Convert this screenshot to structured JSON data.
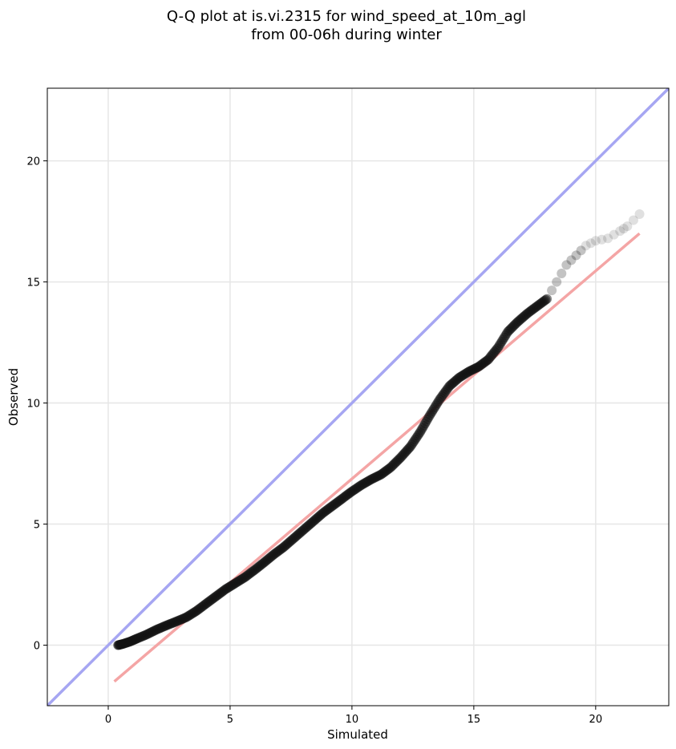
{
  "chart_data": {
    "type": "scatter",
    "title_lines": [
      "Q-Q plot at is.vi.2315 for wind_speed_at_10m_agl",
      "from 00-06h during winter"
    ],
    "xlabel": "Simulated",
    "ylabel": "Observed",
    "xlim": [
      -2.5,
      23
    ],
    "ylim": [
      -2.5,
      23
    ],
    "xticks": [
      0,
      5,
      10,
      15,
      20
    ],
    "yticks": [
      0,
      5,
      10,
      15,
      20
    ],
    "grid": true,
    "colors": {
      "points": "#111111",
      "identity_line": "#a6a6f2",
      "fit_line": "#f4a5a5",
      "grid": "#e6e6e6"
    },
    "identity_line": {
      "x": [
        -2.5,
        23
      ],
      "y": [
        -2.5,
        23
      ]
    },
    "fit_line": {
      "x": [
        0.25,
        21.8
      ],
      "y": [
        -1.5,
        17.0
      ]
    },
    "quantiles": [
      [
        0.4,
        0.0
      ],
      [
        0.6,
        0.05
      ],
      [
        0.9,
        0.15
      ],
      [
        1.2,
        0.28
      ],
      [
        1.6,
        0.45
      ],
      [
        2.0,
        0.65
      ],
      [
        2.4,
        0.82
      ],
      [
        2.8,
        0.98
      ],
      [
        3.2,
        1.15
      ],
      [
        3.6,
        1.4
      ],
      [
        4.0,
        1.7
      ],
      [
        4.4,
        2.0
      ],
      [
        4.8,
        2.3
      ],
      [
        5.2,
        2.55
      ],
      [
        5.6,
        2.8
      ],
      [
        6.0,
        3.1
      ],
      [
        6.4,
        3.42
      ],
      [
        6.8,
        3.75
      ],
      [
        7.2,
        4.05
      ],
      [
        7.6,
        4.4
      ],
      [
        8.0,
        4.75
      ],
      [
        8.4,
        5.1
      ],
      [
        8.8,
        5.45
      ],
      [
        9.2,
        5.75
      ],
      [
        9.6,
        6.05
      ],
      [
        10.0,
        6.35
      ],
      [
        10.4,
        6.62
      ],
      [
        10.8,
        6.85
      ],
      [
        11.2,
        7.05
      ],
      [
        11.6,
        7.35
      ],
      [
        12.0,
        7.75
      ],
      [
        12.4,
        8.2
      ],
      [
        12.8,
        8.8
      ],
      [
        13.2,
        9.5
      ],
      [
        13.6,
        10.15
      ],
      [
        14.0,
        10.7
      ],
      [
        14.4,
        11.05
      ],
      [
        14.8,
        11.3
      ],
      [
        15.2,
        11.5
      ],
      [
        15.6,
        11.8
      ],
      [
        16.0,
        12.3
      ],
      [
        16.4,
        12.95
      ],
      [
        16.8,
        13.35
      ],
      [
        17.2,
        13.7
      ],
      [
        17.6,
        14.0
      ],
      [
        18.0,
        14.3
      ],
      [
        18.4,
        15.0
      ],
      [
        18.8,
        15.7
      ],
      [
        19.2,
        16.1
      ],
      [
        19.6,
        16.5
      ],
      [
        20.0,
        16.7
      ],
      [
        20.5,
        16.8
      ],
      [
        21.0,
        17.1
      ],
      [
        21.3,
        17.3
      ],
      [
        21.8,
        17.8
      ]
    ]
  }
}
